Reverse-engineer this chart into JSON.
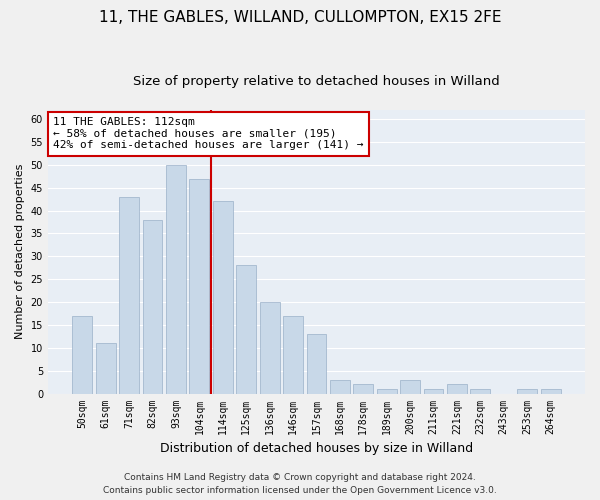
{
  "title1": "11, THE GABLES, WILLAND, CULLOMPTON, EX15 2FE",
  "title2": "Size of property relative to detached houses in Willand",
  "xlabel": "Distribution of detached houses by size in Willand",
  "ylabel": "Number of detached properties",
  "categories": [
    "50sqm",
    "61sqm",
    "71sqm",
    "82sqm",
    "93sqm",
    "104sqm",
    "114sqm",
    "125sqm",
    "136sqm",
    "146sqm",
    "157sqm",
    "168sqm",
    "178sqm",
    "189sqm",
    "200sqm",
    "211sqm",
    "221sqm",
    "232sqm",
    "243sqm",
    "253sqm",
    "264sqm"
  ],
  "values": [
    17,
    11,
    43,
    38,
    50,
    47,
    42,
    28,
    20,
    17,
    13,
    3,
    2,
    1,
    3,
    1,
    2,
    1,
    0,
    1,
    1
  ],
  "bar_color": "#c8d8e8",
  "bar_edgecolor": "#9ab0c8",
  "redline_color": "#cc0000",
  "annotation_text": "11 THE GABLES: 112sqm\n← 58% of detached houses are smaller (195)\n42% of semi-detached houses are larger (141) →",
  "annotation_box_facecolor": "#ffffff",
  "annotation_box_edgecolor": "#cc0000",
  "ylim": [
    0,
    62
  ],
  "yticks": [
    0,
    5,
    10,
    15,
    20,
    25,
    30,
    35,
    40,
    45,
    50,
    55,
    60
  ],
  "plot_bgcolor": "#e8eef5",
  "fig_bgcolor": "#f0f0f0",
  "grid_color": "#ffffff",
  "footer1": "Contains HM Land Registry data © Crown copyright and database right 2024.",
  "footer2": "Contains public sector information licensed under the Open Government Licence v3.0.",
  "title1_fontsize": 11,
  "title2_fontsize": 9.5,
  "xlabel_fontsize": 9,
  "ylabel_fontsize": 8,
  "tick_fontsize": 7,
  "annotation_fontsize": 8,
  "footer_fontsize": 6.5
}
